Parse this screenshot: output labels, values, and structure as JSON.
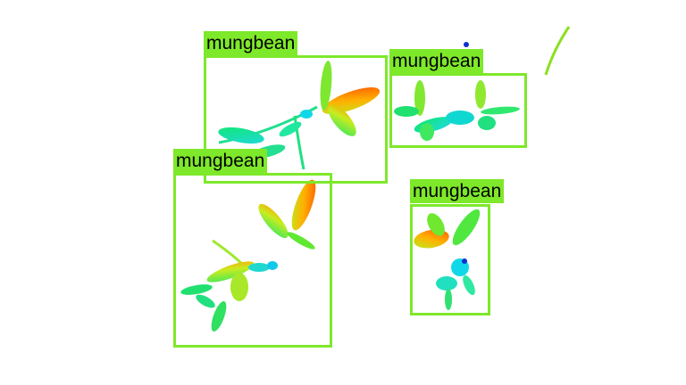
{
  "colors": {
    "box": "#7ee82a",
    "label_bg": "#7ee82a",
    "label_text": "#000000",
    "plant_cool": "#00e0ff",
    "plant_mid": "#22e060",
    "plant_warm": "#ff6a00"
  },
  "detections": [
    {
      "label": "mungbean"
    },
    {
      "label": "mungbean"
    },
    {
      "label": "mungbean"
    },
    {
      "label": "mungbean"
    }
  ]
}
